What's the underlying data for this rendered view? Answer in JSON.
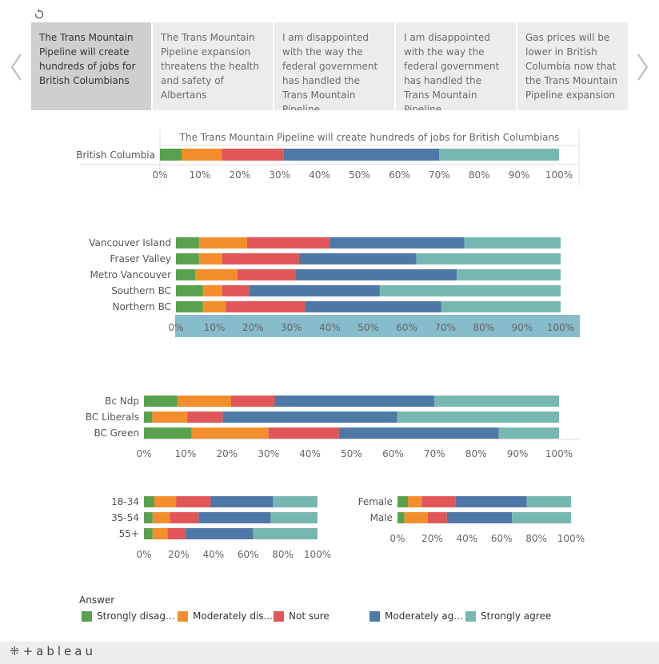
{
  "colors": {
    "strongly_disagree": "#59a14f",
    "moderately_disagree": "#f28e2b",
    "not_sure": "#e15759",
    "moderately_agree": "#4e79a7",
    "strongly_agree": "#76b7b2",
    "highlight_axis": "#86bccb"
  },
  "header": {
    "revert_icon": "revert-icon",
    "prev_icon": "chevron-left-icon",
    "next_icon": "chevron-right-icon"
  },
  "cards": [
    "The Trans Mountain Pipeline will create hundreds of jobs for British Columbians",
    "The Trans Mountain Pipeline expansion threatens the health and safety of Albertans",
    "I am disappointed with the way the federal government has handled the Trans Mountain Pipeline",
    "I am disappointed with the way the federal government has handled the Trans Mountain Pipeline",
    "Gas prices will be lower in British Columbia now that the Trans Mountain Pipeline expansion"
  ],
  "chart_data": [
    {
      "type": "bar",
      "orientation": "horizontal-stacked-100",
      "title": "The Trans Mountain Pipeline will create hundreds of jobs for British Columbians",
      "categories": [
        "British Columbia"
      ],
      "series": [
        {
          "name": "Strongly disag...",
          "values": [
            5.5
          ]
        },
        {
          "name": "Moderately dis...",
          "values": [
            10
          ]
        },
        {
          "name": "Not sure",
          "values": [
            15.5
          ]
        },
        {
          "name": "Moderately ag...",
          "values": [
            39
          ]
        },
        {
          "name": "Strongly agree",
          "values": [
            30
          ]
        }
      ],
      "xlim": [
        0,
        100
      ],
      "ticks": [
        "0%",
        "10%",
        "20%",
        "30%",
        "40%",
        "50%",
        "60%",
        "70%",
        "80%",
        "90%",
        "100%"
      ]
    },
    {
      "type": "bar",
      "orientation": "horizontal-stacked-100",
      "categories": [
        "Vancouver Island",
        "Fraser Valley",
        "Metro Vancouver",
        "Southern BC",
        "Northern BC"
      ],
      "series": [
        {
          "name": "Strongly disag...",
          "values": [
            6,
            6,
            5,
            7,
            7
          ]
        },
        {
          "name": "Moderately dis...",
          "values": [
            12.5,
            6,
            11,
            5,
            6
          ]
        },
        {
          "name": "Not sure",
          "values": [
            21.5,
            20,
            15,
            7,
            20.5
          ]
        },
        {
          "name": "Moderately ag...",
          "values": [
            35,
            30.5,
            42,
            34,
            35.5
          ]
        },
        {
          "name": "Strongly agree",
          "values": [
            25,
            37.5,
            27,
            47,
            31
          ]
        }
      ],
      "xlim": [
        0,
        100
      ],
      "ticks": [
        "0%",
        "10%",
        "20%",
        "30%",
        "40%",
        "50%",
        "60%",
        "70%",
        "80%",
        "90%",
        "100%"
      ]
    },
    {
      "type": "bar",
      "orientation": "horizontal-stacked-100",
      "categories": [
        "Bc Ndp",
        "BC Liberals",
        "BC Green"
      ],
      "series": [
        {
          "name": "Strongly disag...",
          "values": [
            8,
            2,
            11.5
          ]
        },
        {
          "name": "Moderately dis...",
          "values": [
            13,
            8.5,
            18.5
          ]
        },
        {
          "name": "Not sure",
          "values": [
            10.5,
            8.5,
            17
          ]
        },
        {
          "name": "Moderately ag...",
          "values": [
            38.5,
            42,
            38.5
          ]
        },
        {
          "name": "Strongly agree",
          "values": [
            30,
            39,
            14.5
          ]
        }
      ],
      "xlim": [
        0,
        100
      ],
      "ticks": [
        "0%",
        "10%",
        "20%",
        "30%",
        "40%",
        "50%",
        "60%",
        "70%",
        "80%",
        "90%",
        "100%"
      ]
    },
    {
      "type": "bar",
      "orientation": "horizontal-stacked-100",
      "categories": [
        "18-34",
        "35-54",
        "55+"
      ],
      "series": [
        {
          "name": "Strongly disag...",
          "values": [
            6,
            5,
            5
          ]
        },
        {
          "name": "Moderately dis...",
          "values": [
            12.5,
            10,
            8.5
          ]
        },
        {
          "name": "Not sure",
          "values": [
            20,
            16.5,
            10.5
          ]
        },
        {
          "name": "Moderately ag...",
          "values": [
            36,
            41.5,
            39
          ]
        },
        {
          "name": "Strongly agree",
          "values": [
            25.5,
            27,
            37
          ]
        }
      ],
      "xlim": [
        0,
        100
      ],
      "ticks": [
        "0%",
        "20%",
        "40%",
        "60%",
        "80%",
        "100%"
      ]
    },
    {
      "type": "bar",
      "orientation": "horizontal-stacked-100",
      "categories": [
        "Female",
        "Male"
      ],
      "series": [
        {
          "name": "Strongly disag...",
          "values": [
            6,
            4
          ]
        },
        {
          "name": "Moderately dis...",
          "values": [
            8,
            13.5
          ]
        },
        {
          "name": "Not sure",
          "values": [
            19.5,
            11
          ]
        },
        {
          "name": "Moderately ag...",
          "values": [
            41,
            37.5
          ]
        },
        {
          "name": "Strongly agree",
          "values": [
            25.5,
            34
          ]
        }
      ],
      "xlim": [
        0,
        100
      ],
      "ticks": [
        "0%",
        "20%",
        "40%",
        "60%",
        "80%",
        "100%"
      ]
    }
  ],
  "legend": {
    "title": "Answer",
    "items": [
      {
        "label": "Strongly disag...",
        "color": "#59a14f"
      },
      {
        "label": "Moderately dis...",
        "color": "#f28e2b"
      },
      {
        "label": "Not sure",
        "color": "#e15759"
      },
      {
        "label": "Moderately ag...",
        "color": "#4e79a7"
      },
      {
        "label": "Strongly agree",
        "color": "#76b7b2"
      }
    ]
  },
  "footer": {
    "logo_text": "+ableau",
    "logo_icon": "tableau-plus-icon"
  }
}
